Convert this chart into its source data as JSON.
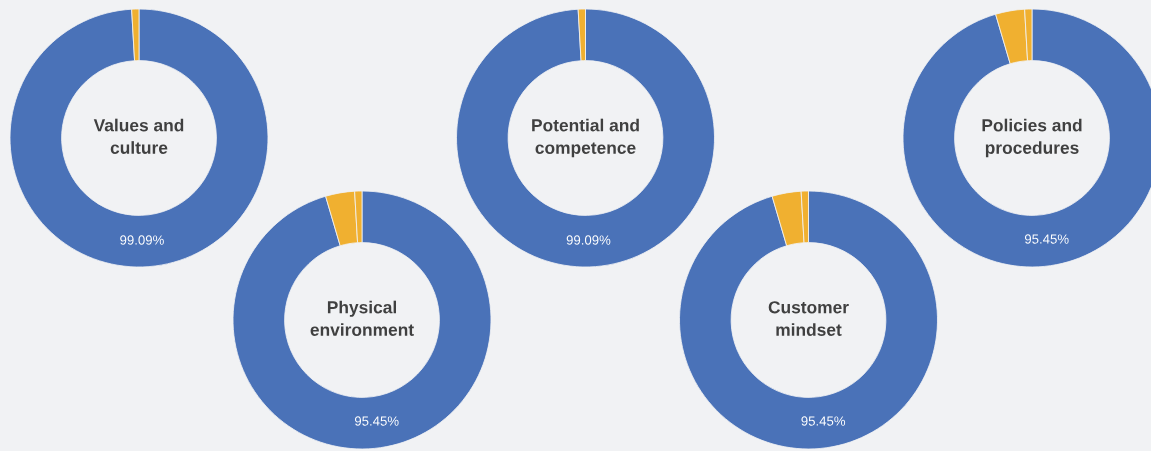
{
  "chart_data": [
    {
      "type": "donut",
      "title": "Values and culture",
      "categories": [
        null,
        null
      ],
      "values": [
        99.09,
        0.91
      ],
      "colors": [
        "#4a72b8",
        "#f0b030"
      ],
      "value_labels": [
        "99.09%",
        null
      ]
    },
    {
      "type": "donut",
      "title": "Potential and competence",
      "categories": [
        null,
        null
      ],
      "values": [
        99.09,
        0.91
      ],
      "colors": [
        "#4a72b8",
        "#f0b030"
      ],
      "value_labels": [
        "99.09%",
        null
      ]
    },
    {
      "type": "donut",
      "title": "Policies and procedures",
      "categories": [
        null,
        null,
        null
      ],
      "values": [
        95.45,
        3.64,
        0.91
      ],
      "colors": [
        "#4a72b8",
        "#f0b030",
        "#f0b030"
      ],
      "value_labels": [
        "95.45%",
        null,
        null
      ]
    },
    {
      "type": "donut",
      "title": "Physical environment",
      "categories": [
        null,
        null,
        null
      ],
      "values": [
        95.45,
        3.64,
        0.91
      ],
      "colors": [
        "#4a72b8",
        "#f0b030",
        "#f0b030"
      ],
      "value_labels": [
        "95.45%",
        null,
        null
      ]
    },
    {
      "type": "donut",
      "title": "Customer mindset",
      "categories": [
        null,
        null,
        null
      ],
      "values": [
        95.45,
        3.64,
        0.91
      ],
      "colors": [
        "#4a72b8",
        "#f0b030",
        "#f0b030"
      ],
      "value_labels": [
        "95.45%",
        null,
        null
      ]
    }
  ]
}
